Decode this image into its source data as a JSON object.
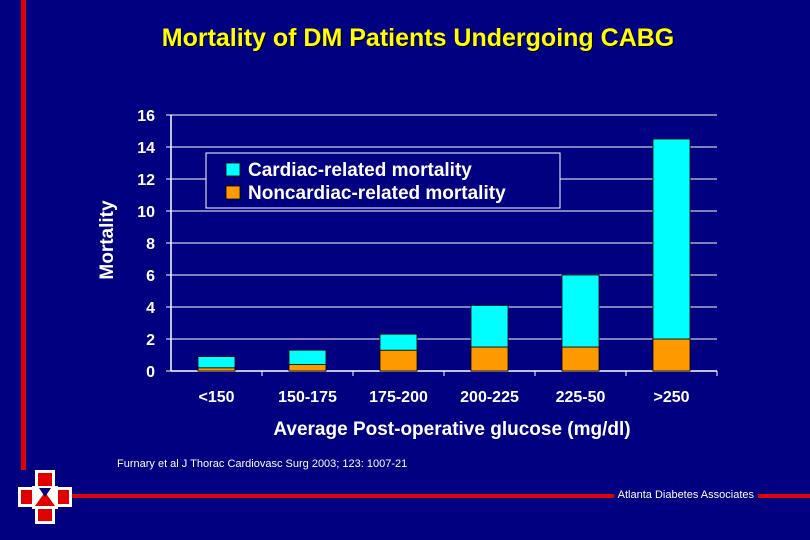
{
  "slide": {
    "title": "Mortality of DM Patients Undergoing CABG",
    "citation": "Furnary et al J Thorac Cardiovasc Surg 2003; 123: 1007-21",
    "credit": "Atlanta Diabetes Associates"
  },
  "chart_data": {
    "type": "bar",
    "stacked": true,
    "title": "",
    "xlabel": "Average Post-operative glucose (mg/dl)",
    "ylabel": "Mortality",
    "ylim": [
      0,
      16
    ],
    "yticks": [
      0,
      2,
      4,
      6,
      8,
      10,
      12,
      14,
      16
    ],
    "grid": true,
    "legend_position": "top-left",
    "categories": [
      "<150",
      "150-175",
      "175-200",
      "200-225",
      "225-50",
      ">250"
    ],
    "series": [
      {
        "name": "Noncardiac-related mortality",
        "color": "#ff9900",
        "values": [
          0.2,
          0.4,
          1.3,
          1.5,
          1.5,
          2.0
        ]
      },
      {
        "name": "Cardiac-related mortality",
        "color": "#00ffff",
        "values": [
          0.7,
          0.9,
          1.0,
          2.6,
          4.5,
          12.5
        ]
      }
    ],
    "colors": {
      "plot_background": "#000080",
      "grid": "#ffffff",
      "text": "#ffffff"
    }
  }
}
